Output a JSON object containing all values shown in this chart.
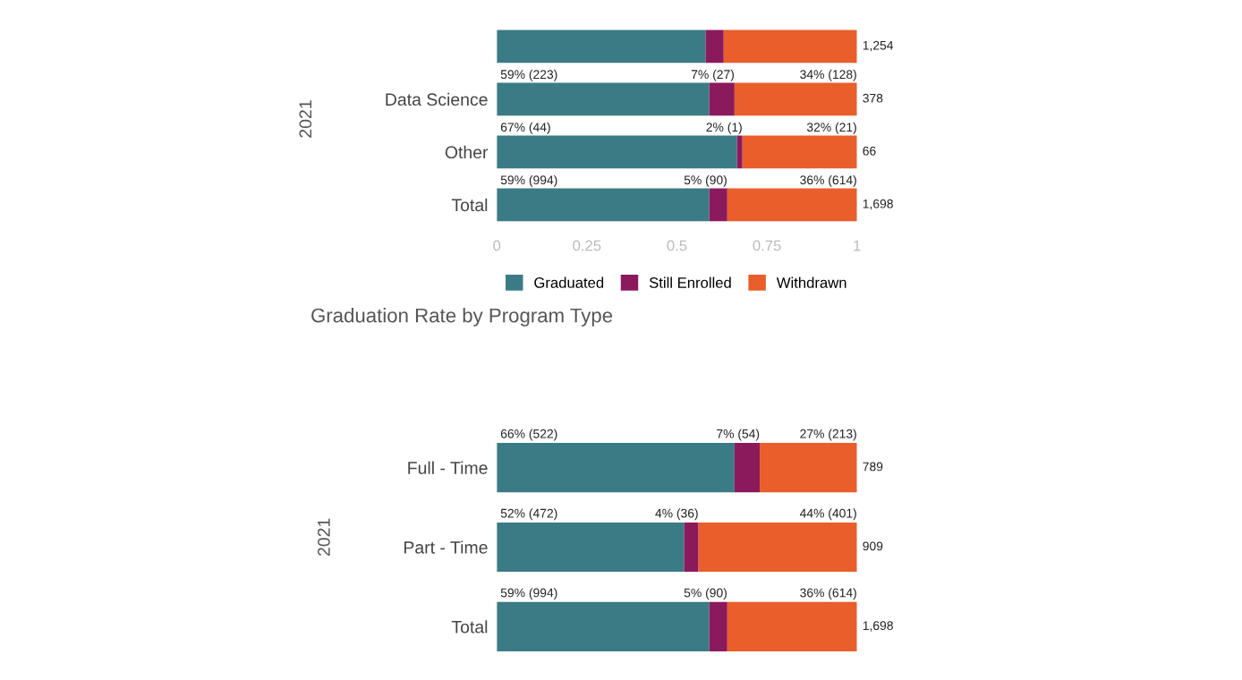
{
  "chart_data": [
    {
      "type": "bar",
      "orientation": "horizontal",
      "stacked": true,
      "ylabel": "2021",
      "categories": [
        null,
        "Data Science",
        "Other",
        "Total"
      ],
      "xlim": [
        0,
        1
      ],
      "xticks": [
        0,
        0.25,
        0.5,
        0.75,
        1
      ],
      "legend": "bottom",
      "grid": false,
      "series": [
        {
          "name": "Graduated",
          "color": "#3b7b85",
          "values": [
            0.58,
            0.59,
            0.667,
            0.59
          ],
          "value_labels": [
            null,
            "59% (223)",
            "67% (44)",
            "59% (994)"
          ]
        },
        {
          "name": "Still Enrolled",
          "color": "#8b1a5c",
          "values": [
            0.05,
            0.07,
            0.015,
            0.05
          ],
          "value_labels": [
            null,
            "7% (27)",
            "2% (1)",
            "5% (90)"
          ]
        },
        {
          "name": "Withdrawn",
          "color": "#e95e2b",
          "values": [
            0.37,
            0.34,
            0.318,
            0.36
          ],
          "value_labels": [
            null,
            "34% (128)",
            "32% (21)",
            "36% (614)"
          ]
        }
      ],
      "annotations": [
        "1,254",
        "378",
        "66",
        "1,698"
      ]
    },
    {
      "type": "bar",
      "orientation": "horizontal",
      "stacked": true,
      "title": "Graduation Rate by Program Type",
      "ylabel": "2021",
      "categories": [
        "Full - Time",
        "Part - Time",
        "Total"
      ],
      "xlim": [
        0,
        1
      ],
      "tick_labels": "y",
      "grid": false,
      "series": [
        {
          "color": "#3b7b85",
          "values": [
            0.66,
            0.52,
            0.59
          ],
          "value_labels": [
            "66% (522)",
            "52% (472)",
            "59% (994)"
          ]
        },
        {
          "color": "#8b1a5c",
          "values": [
            0.07,
            0.04,
            0.05
          ],
          "value_labels": [
            "7% (54)",
            "4% (36)",
            "5% (90)"
          ]
        },
        {
          "color": "#e95e2b",
          "values": [
            0.27,
            0.44,
            0.36
          ],
          "value_labels": [
            "27% (213)",
            "44% (401)",
            "36% (614)"
          ]
        }
      ],
      "annotations": [
        "789",
        "909",
        "1,698"
      ]
    }
  ]
}
